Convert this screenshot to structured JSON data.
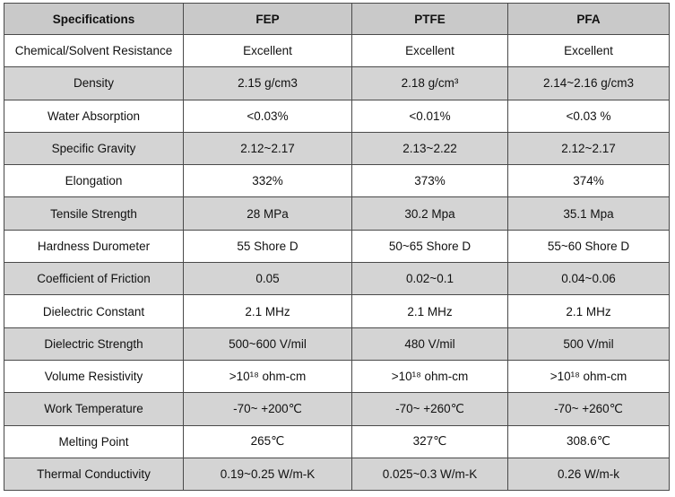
{
  "table": {
    "headers": [
      "Specifications",
      "FEP",
      "PTFE",
      "PFA"
    ],
    "rows": [
      [
        "Chemical/Solvent Resistance",
        "Excellent",
        "Excellent",
        "Excellent"
      ],
      [
        "Density",
        "2.15 g/cm3",
        "2.18 g/cm³",
        "2.14~2.16 g/cm3"
      ],
      [
        "Water Absorption",
        "<0.03%",
        "<0.01%",
        "<0.03 %"
      ],
      [
        "Specific Gravity",
        "2.12~2.17",
        "2.13~2.22",
        "2.12~2.17"
      ],
      [
        "Elongation",
        "332%",
        "373%",
        "374%"
      ],
      [
        "Tensile Strength",
        "28 MPa",
        "30.2 Mpa",
        "35.1 Mpa"
      ],
      [
        "Hardness Durometer",
        "55 Shore D",
        "50~65 Shore D",
        "55~60 Shore D"
      ],
      [
        "Coefficient of Friction",
        "0.05",
        "0.02~0.1",
        "0.04~0.06"
      ],
      [
        "Dielectric Constant",
        "2.1 MHz",
        "2.1 MHz",
        "2.1 MHz"
      ],
      [
        "Dielectric Strength",
        "500~600 V/mil",
        "480 V/mil",
        "500 V/mil"
      ],
      [
        "Volume Resistivity",
        ">10¹⁸ ohm-cm",
        ">10¹⁸ ohm-cm",
        ">10¹⁸ ohm-cm"
      ],
      [
        "Work Temperature",
        "-70~ +200℃",
        "-70~ +260℃",
        "-70~ +260℃"
      ],
      [
        "Melting Point",
        "265℃",
        "327℃",
        "308.6℃"
      ],
      [
        "Thermal Conductivity",
        "0.19~0.25 W/m-K",
        "0.025~0.3 W/m-K",
        "0.26 W/m-k"
      ]
    ]
  },
  "colors": {
    "header_bg": "#c9c9c9",
    "shaded_row_bg": "#d4d4d4",
    "border": "#4a4a4a"
  }
}
